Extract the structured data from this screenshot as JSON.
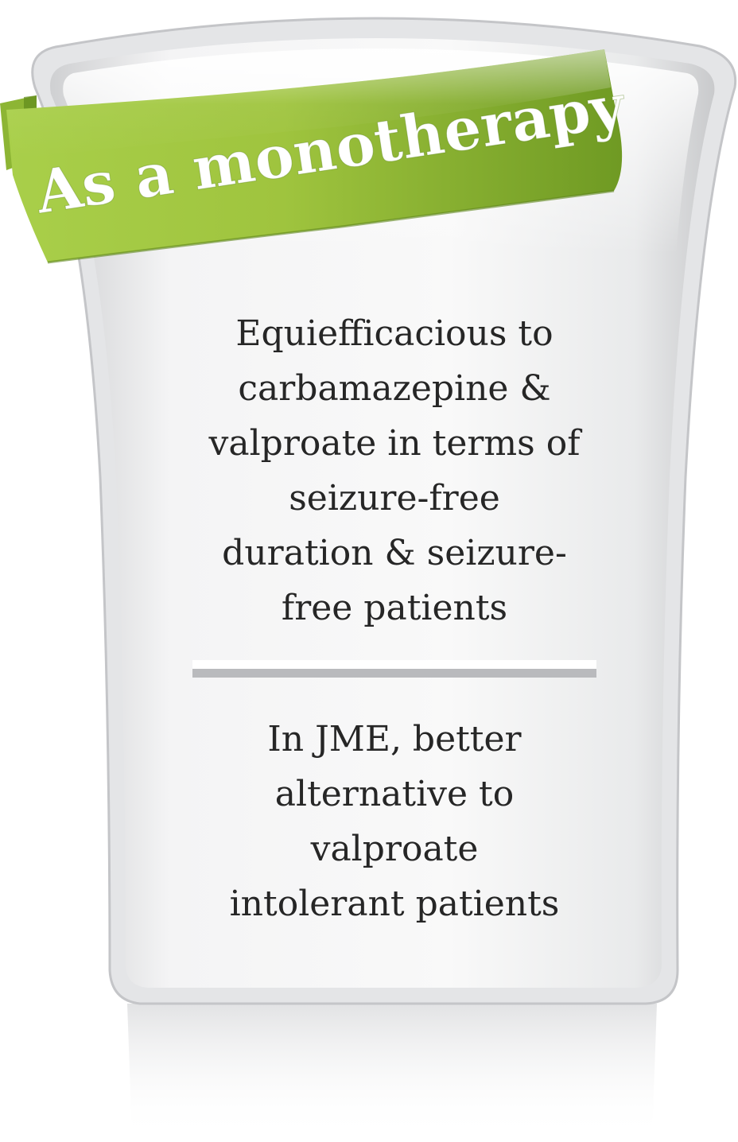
{
  "banner": {
    "label": "As a monotherapy"
  },
  "points": [
    {
      "lines": [
        "Equiefficacious to",
        "carbamazepine &",
        "valproate in terms of",
        "seizure-free",
        "duration & seizure-",
        "free patients"
      ]
    },
    {
      "lines": [
        "In JME, better",
        "alternative to",
        "valproate",
        "intolerant patients"
      ]
    }
  ],
  "colors": {
    "ribbon_light": "#b8d96a",
    "ribbon_dark": "#6e9a24",
    "panel_light": "#f7f7f7",
    "panel_dark": "#d2d3d5",
    "divider": "#bcbdc0",
    "text": "#262626"
  }
}
